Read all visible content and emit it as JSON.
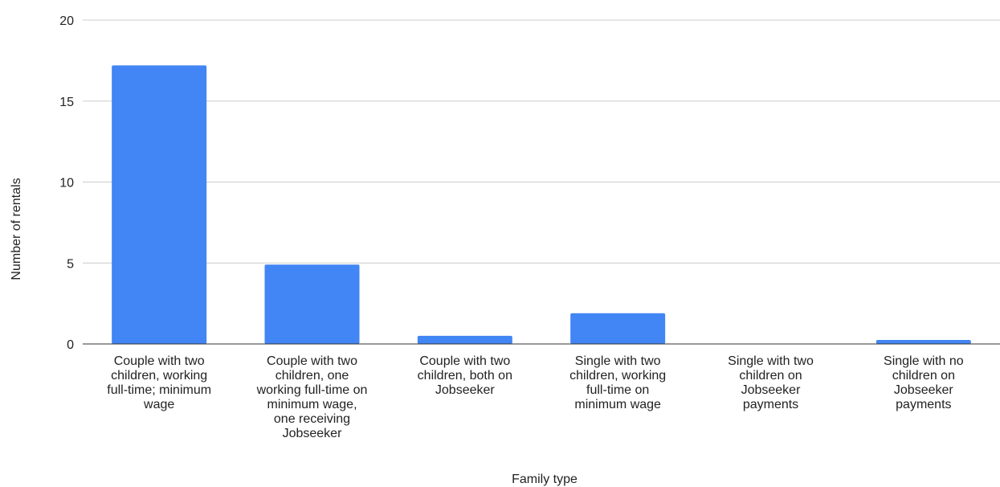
{
  "chart_data": {
    "type": "bar",
    "title": "",
    "xlabel": "Family type",
    "ylabel": "Number of rentals",
    "ylim": [
      0,
      20
    ],
    "yticks": [
      "0",
      "5",
      "10",
      "15",
      "20"
    ],
    "grid": true,
    "legend": "none",
    "bar_color": "#4285f4",
    "categories": [
      [
        "Couple with two",
        "children, working",
        "full-time; minimum",
        "wage"
      ],
      [
        "Couple with two",
        "children, one",
        "working full-time on",
        "minimum wage,",
        "one receiving",
        "Jobseeker"
      ],
      [
        "Couple with two",
        "children, both on",
        "Jobseeker"
      ],
      [
        "Single with two",
        "children, working",
        "full-time on",
        "minimum wage"
      ],
      [
        "Single with two",
        "children on",
        "Jobseeker",
        "payments"
      ],
      [
        "Single with no",
        "children on",
        "Jobseeker",
        "payments"
      ]
    ],
    "values": [
      17.2,
      4.9,
      0.5,
      1.9,
      0,
      0.25
    ]
  }
}
